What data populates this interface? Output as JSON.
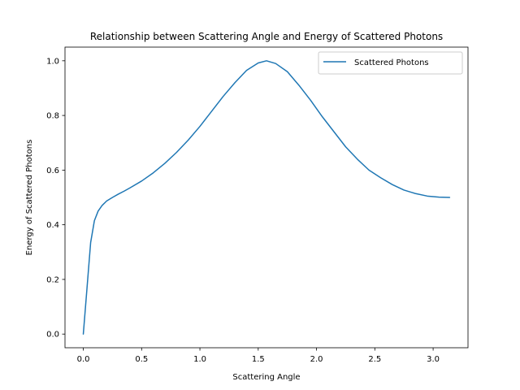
{
  "chart_data": {
    "type": "line",
    "title": "Relationship between Scattering Angle and Energy of Scattered Photons",
    "xlabel": "Scattering Angle",
    "ylabel": "Energy of Scattered Photons",
    "xlim": [
      -0.157,
      3.299
    ],
    "ylim": [
      -0.05,
      1.05
    ],
    "x_ticks": [
      0.0,
      0.5,
      1.0,
      1.5,
      2.0,
      2.5,
      3.0
    ],
    "x_tick_labels": [
      "0.0",
      "0.5",
      "1.0",
      "1.5",
      "2.0",
      "2.5",
      "3.0"
    ],
    "y_ticks": [
      0.0,
      0.2,
      0.4,
      0.6,
      0.8,
      1.0
    ],
    "y_tick_labels": [
      "0.0",
      "0.2",
      "0.4",
      "0.6",
      "0.8",
      "1.0"
    ],
    "grid": false,
    "legend_position": "top-right",
    "colors": {
      "series": "#1f77b4",
      "axes": "#000000",
      "legend_border": "#cccccc"
    },
    "series": [
      {
        "name": "Scattered Photons",
        "x": [
          0.0,
          0.032,
          0.063,
          0.095,
          0.127,
          0.16,
          0.2,
          0.25,
          0.3,
          0.35,
          0.4,
          0.5,
          0.6,
          0.7,
          0.8,
          0.9,
          1.0,
          1.1,
          1.2,
          1.3,
          1.4,
          1.5,
          1.571,
          1.65,
          1.75,
          1.85,
          1.95,
          2.05,
          2.15,
          2.25,
          2.35,
          2.45,
          2.55,
          2.65,
          2.75,
          2.85,
          2.95,
          3.05,
          3.1416
        ],
        "y": [
          0.0,
          0.17,
          0.335,
          0.415,
          0.45,
          0.47,
          0.487,
          0.5,
          0.512,
          0.523,
          0.535,
          0.56,
          0.59,
          0.625,
          0.665,
          0.71,
          0.76,
          0.815,
          0.87,
          0.92,
          0.965,
          0.992,
          1.0,
          0.99,
          0.96,
          0.91,
          0.855,
          0.795,
          0.74,
          0.685,
          0.64,
          0.6,
          0.572,
          0.547,
          0.527,
          0.514,
          0.505,
          0.501,
          0.5
        ]
      }
    ]
  }
}
